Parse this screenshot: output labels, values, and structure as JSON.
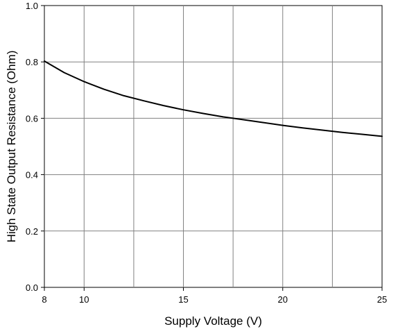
{
  "chart_data": {
    "type": "line",
    "title": "",
    "xlabel": "Supply Voltage (V)",
    "ylabel": "High State Output Resistance (Ohm)",
    "xlim": [
      8,
      25
    ],
    "ylim": [
      0.0,
      1.0
    ],
    "x_ticks": [
      {
        "value": 8,
        "label": "8"
      },
      {
        "value": 10,
        "label": "10"
      },
      {
        "value": 15,
        "label": "15"
      },
      {
        "value": 20,
        "label": "20"
      },
      {
        "value": 25,
        "label": "25"
      }
    ],
    "y_ticks": [
      {
        "value": 0.0,
        "label": "0.0"
      },
      {
        "value": 0.2,
        "label": "0.2"
      },
      {
        "value": 0.4,
        "label": "0.4"
      },
      {
        "value": 0.6,
        "label": "0.6"
      },
      {
        "value": 0.8,
        "label": "0.8"
      },
      {
        "value": 1.0,
        "label": "1.0"
      }
    ],
    "x_gridlines": [
      10,
      12.5,
      15,
      17.5,
      20,
      22.5
    ],
    "y_gridlines": [
      0.2,
      0.4,
      0.6,
      0.8
    ],
    "grid": true,
    "series": [
      {
        "color": "#000000",
        "x": [
          8,
          9,
          10,
          11,
          12,
          13,
          14,
          15,
          16,
          17,
          18,
          19,
          20,
          21,
          22,
          23,
          24,
          25
        ],
        "y": [
          0.803,
          0.762,
          0.73,
          0.703,
          0.68,
          0.662,
          0.645,
          0.63,
          0.617,
          0.605,
          0.595,
          0.585,
          0.575,
          0.566,
          0.558,
          0.55,
          0.543,
          0.536
        ]
      }
    ]
  }
}
